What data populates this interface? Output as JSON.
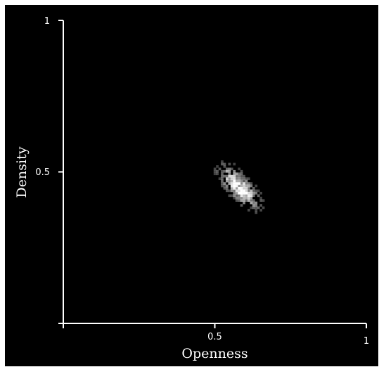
{
  "chart_data": {
    "type": "heatmap",
    "xlabel": "Openness",
    "ylabel": "Density",
    "xlim": [
      0,
      1
    ],
    "ylim": [
      0,
      1
    ],
    "x_ticks": [
      {
        "value": 0.5,
        "label": "0.5"
      },
      {
        "value": 1,
        "label": "1"
      }
    ],
    "y_ticks": [
      {
        "value": 0.5,
        "label": "0.5"
      },
      {
        "value": 1,
        "label": "1"
      }
    ],
    "grid": false,
    "background_color": "#000000",
    "axis_color": "#ffffff",
    "cell_color": "#ffffff",
    "distribution": {
      "center": [
        0.58,
        0.45
      ],
      "sd_along": 0.055,
      "sd_across": 0.022,
      "angle_deg": -47,
      "x_range": [
        0.48,
        0.74
      ],
      "y_range": [
        0.33,
        0.61
      ],
      "bin_width": 0.008
    }
  }
}
